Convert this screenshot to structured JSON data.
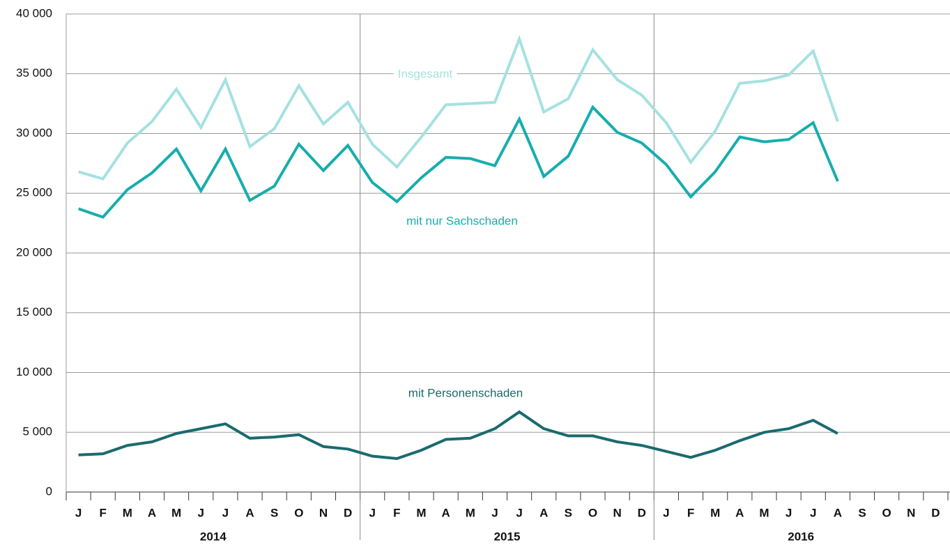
{
  "chart_data": {
    "type": "line",
    "categories": [
      "J",
      "F",
      "M",
      "A",
      "M",
      "J",
      "J",
      "A",
      "S",
      "O",
      "N",
      "D",
      "J",
      "F",
      "M",
      "A",
      "M",
      "J",
      "J",
      "A",
      "S",
      "O",
      "N",
      "D",
      "J",
      "F",
      "M",
      "A",
      "M",
      "J",
      "J",
      "A",
      "S",
      "O",
      "N",
      "D"
    ],
    "groups": [
      "2014",
      "2015",
      "2016"
    ],
    "series": [
      {
        "name": "Insgesamt",
        "color": "#a5e1e1",
        "values": [
          26800,
          26200,
          29200,
          31000,
          33700,
          30500,
          34500,
          28900,
          30400,
          34000,
          30800,
          32600,
          29100,
          27200,
          29700,
          32400,
          32500,
          32600,
          37900,
          31800,
          32900,
          37000,
          34500,
          33200,
          30900,
          27600,
          30200,
          34200,
          34400,
          34900,
          36900,
          31000,
          null,
          null,
          null,
          null
        ]
      },
      {
        "name": "mit nur Sachschaden",
        "color": "#17adad",
        "values": [
          23700,
          23000,
          25300,
          26700,
          28700,
          25200,
          28700,
          24400,
          25600,
          29100,
          26900,
          29000,
          25900,
          24300,
          26300,
          28000,
          27900,
          27300,
          31200,
          26400,
          28100,
          32200,
          30100,
          29200,
          27400,
          24700,
          26800,
          29700,
          29300,
          29500,
          30900,
          26000,
          null,
          null,
          null,
          null
        ]
      },
      {
        "name": "mit Personenschaden",
        "color": "#1a6a6e",
        "values": [
          3100,
          3200,
          3900,
          4200,
          4900,
          5300,
          5700,
          4500,
          4600,
          4800,
          3800,
          3600,
          3000,
          2800,
          3500,
          4400,
          4500,
          5300,
          6700,
          5300,
          4700,
          4700,
          4200,
          3900,
          3400,
          2900,
          3500,
          4300,
          5000,
          5300,
          6000,
          4900,
          null,
          null,
          null,
          null
        ]
      }
    ],
    "ylim": [
      0,
      40000
    ],
    "yticks": [
      {
        "value": 0,
        "label": "0"
      },
      {
        "value": 5000,
        "label": "5 000"
      },
      {
        "value": 10000,
        "label": "10 000"
      },
      {
        "value": 15000,
        "label": "15 000"
      },
      {
        "value": 20000,
        "label": "20 000"
      },
      {
        "value": 25000,
        "label": "25 000"
      },
      {
        "value": 30000,
        "label": "30 000"
      },
      {
        "value": 35000,
        "label": "35 000"
      },
      {
        "value": 40000,
        "label": "40 000"
      }
    ],
    "grid": true
  }
}
